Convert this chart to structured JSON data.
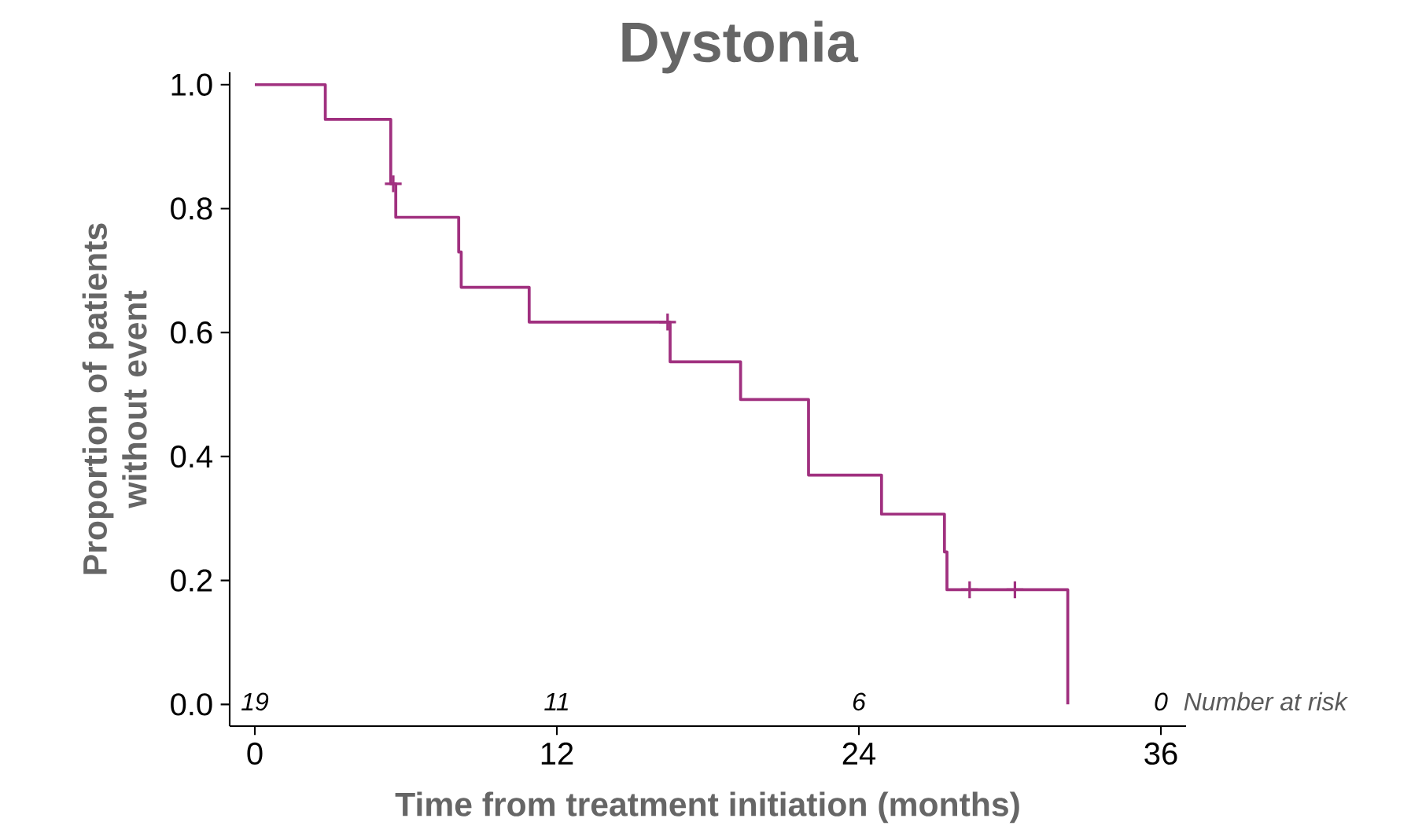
{
  "chart_data": {
    "type": "step",
    "title": "Dystonia",
    "xlabel": "Time from treatment initiation (months)",
    "ylabel": "Proportion of patients without event",
    "xlim": [
      -1,
      37
    ],
    "ylim": [
      -0.035,
      1.02
    ],
    "xticks": [
      0,
      12,
      24,
      36
    ],
    "yticks": [
      {
        "value": 0,
        "label": "0.0"
      },
      0.2,
      0.4,
      0.6,
      0.8,
      {
        "value": 1,
        "label": "1.0"
      }
    ],
    "series": [
      {
        "color": "#a0307f",
        "x": [
          0,
          2.8,
          5.4,
          5.6,
          8.1,
          8.2,
          10.9,
          16.5,
          19.3,
          22.0,
          24.9,
          27.4,
          27.5,
          32.3
        ],
        "values": [
          1.0,
          0.944,
          0.84,
          0.786,
          0.73,
          0.673,
          0.617,
          0.553,
          0.492,
          0.37,
          0.307,
          0.246,
          0.185,
          0
        ]
      },
      {
        "type": "scatter",
        "color": "#a0307f",
        "marker": "cross",
        "x": [
          5.5,
          16.4,
          28.4,
          30.2
        ],
        "values": [
          0.84,
          0.617,
          0.185,
          0.185
        ]
      }
    ],
    "annotations": [
      "19",
      "11",
      "6",
      "0",
      "Number at risk"
    ]
  }
}
